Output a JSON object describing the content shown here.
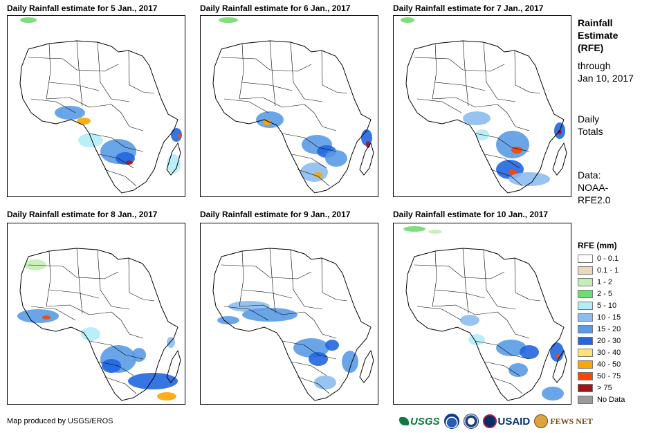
{
  "panels": [
    {
      "title": "Daily Rainfall estimate for 5 Jan., 2017"
    },
    {
      "title": "Daily Rainfall estimate for 6 Jan., 2017"
    },
    {
      "title": "Daily Rainfall estimate for 7 Jan., 2017"
    },
    {
      "title": "Daily Rainfall estimate for 8 Jan., 2017"
    },
    {
      "title": "Daily Rainfall estimate for 9 Jan., 2017"
    },
    {
      "title": "Daily Rainfall estimate for 10 Jan., 2017"
    }
  ],
  "side": {
    "title_line1": "Rainfall",
    "title_line2": "Estimate",
    "title_line3": "(RFE)",
    "through_label": "through",
    "through_date": "Jan 10, 2017",
    "totals_line1": "Daily",
    "totals_line2": "Totals",
    "data_line1": "Data:",
    "data_line2": "NOAA-",
    "data_line3": "RFE2.0"
  },
  "legend": {
    "title": "RFE (mm)",
    "items": [
      {
        "label": "0 - 0.1",
        "color": "#ffffff"
      },
      {
        "label": "0.1 - 1",
        "color": "#ecd9b9"
      },
      {
        "label": "1 - 2",
        "color": "#c2f0b4"
      },
      {
        "label": "2 - 5",
        "color": "#6fdc6f"
      },
      {
        "label": "5 - 10",
        "color": "#b3ecf7"
      },
      {
        "label": "10 - 15",
        "color": "#8cbcf0"
      },
      {
        "label": "15 - 20",
        "color": "#5a9be6"
      },
      {
        "label": "20 - 30",
        "color": "#2166e0"
      },
      {
        "label": "30 - 40",
        "color": "#ffe27a"
      },
      {
        "label": "40 - 50",
        "color": "#ffa500"
      },
      {
        "label": "50 - 75",
        "color": "#ff4500"
      },
      {
        "label": "> 75",
        "color": "#a31515"
      },
      {
        "label": "No Data",
        "color": "#9a9a9a"
      }
    ]
  },
  "footer": {
    "credit": "Map produced by USGS/EROS",
    "logo_usgs": "USGS",
    "logo_usaid": "USAID",
    "logo_fews": "FEWS NET"
  }
}
